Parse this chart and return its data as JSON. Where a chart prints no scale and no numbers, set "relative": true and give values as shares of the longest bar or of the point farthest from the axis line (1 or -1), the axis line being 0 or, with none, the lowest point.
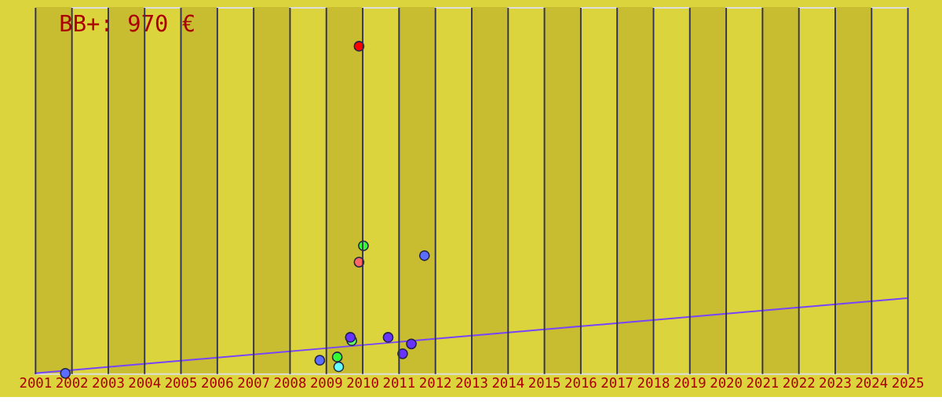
{
  "chart_data": {
    "type": "scatter",
    "title": "BB+: 970 €",
    "relative": true,
    "xlim": [
      2001,
      2025
    ],
    "xticks": [
      2001,
      2002,
      2003,
      2004,
      2005,
      2006,
      2007,
      2008,
      2009,
      2010,
      2011,
      2012,
      2013,
      2014,
      2015,
      2016,
      2017,
      2018,
      2019,
      2020,
      2021,
      2022,
      2023,
      2024,
      2025
    ],
    "grid": "x",
    "marker": "circle",
    "bands": [
      {
        "axis": "x",
        "from": 2001,
        "to": 2002,
        "color": "#c8bc30"
      },
      {
        "axis": "x",
        "from": 2003,
        "to": 2004,
        "color": "#c8bc30"
      },
      {
        "axis": "x",
        "from": 2005,
        "to": 2006,
        "color": "#c8bc30"
      },
      {
        "axis": "x",
        "from": 2007,
        "to": 2008,
        "color": "#c8bc30"
      },
      {
        "axis": "x",
        "from": 2009,
        "to": 2010,
        "color": "#c8bc30"
      },
      {
        "axis": "x",
        "from": 2011,
        "to": 2012,
        "color": "#c8bc30"
      },
      {
        "axis": "x",
        "from": 2013,
        "to": 2014,
        "color": "#c8bc30"
      },
      {
        "axis": "x",
        "from": 2015,
        "to": 2016,
        "color": "#c8bc30"
      },
      {
        "axis": "x",
        "from": 2017,
        "to": 2018,
        "color": "#c8bc30"
      },
      {
        "axis": "x",
        "from": 2019,
        "to": 2020,
        "color": "#c8bc30"
      },
      {
        "axis": "x",
        "from": 2021,
        "to": 2022,
        "color": "#c8bc30"
      },
      {
        "axis": "x",
        "from": 2023,
        "to": 2024,
        "color": "#c8bc30"
      }
    ],
    "series": [
      {
        "type": "line",
        "marker": "none",
        "color": "#7744ff",
        "x": [
          2001,
          2025
        ],
        "values": [
          0,
          0.23
        ]
      },
      {
        "color": "#5c6cff",
        "x": [
          2001.84,
          2008.84,
          2011.72
        ],
        "values": [
          0,
          0.04,
          0.36
        ]
      },
      {
        "color": "#66ff66",
        "x": [
          2009.72
        ],
        "values": [
          0.1
        ]
      },
      {
        "color": "#6633ff",
        "x": [
          2009.68,
          2010.72,
          2011.12,
          2011.36
        ],
        "values": [
          0.11,
          0.11,
          0.06,
          0.09
        ]
      },
      {
        "color": "#ff0000",
        "x": [
          2009.92
        ],
        "values": [
          1
        ]
      },
      {
        "color": "#33ff33",
        "x": [
          2010.04,
          2009.32
        ],
        "values": [
          0.39,
          0.05
        ]
      },
      {
        "color": "#66ffff",
        "x": [
          2009.36
        ],
        "values": [
          0.02
        ]
      },
      {
        "color": "#ff6666",
        "x": [
          2009.92
        ],
        "values": [
          0.34
        ]
      }
    ]
  }
}
